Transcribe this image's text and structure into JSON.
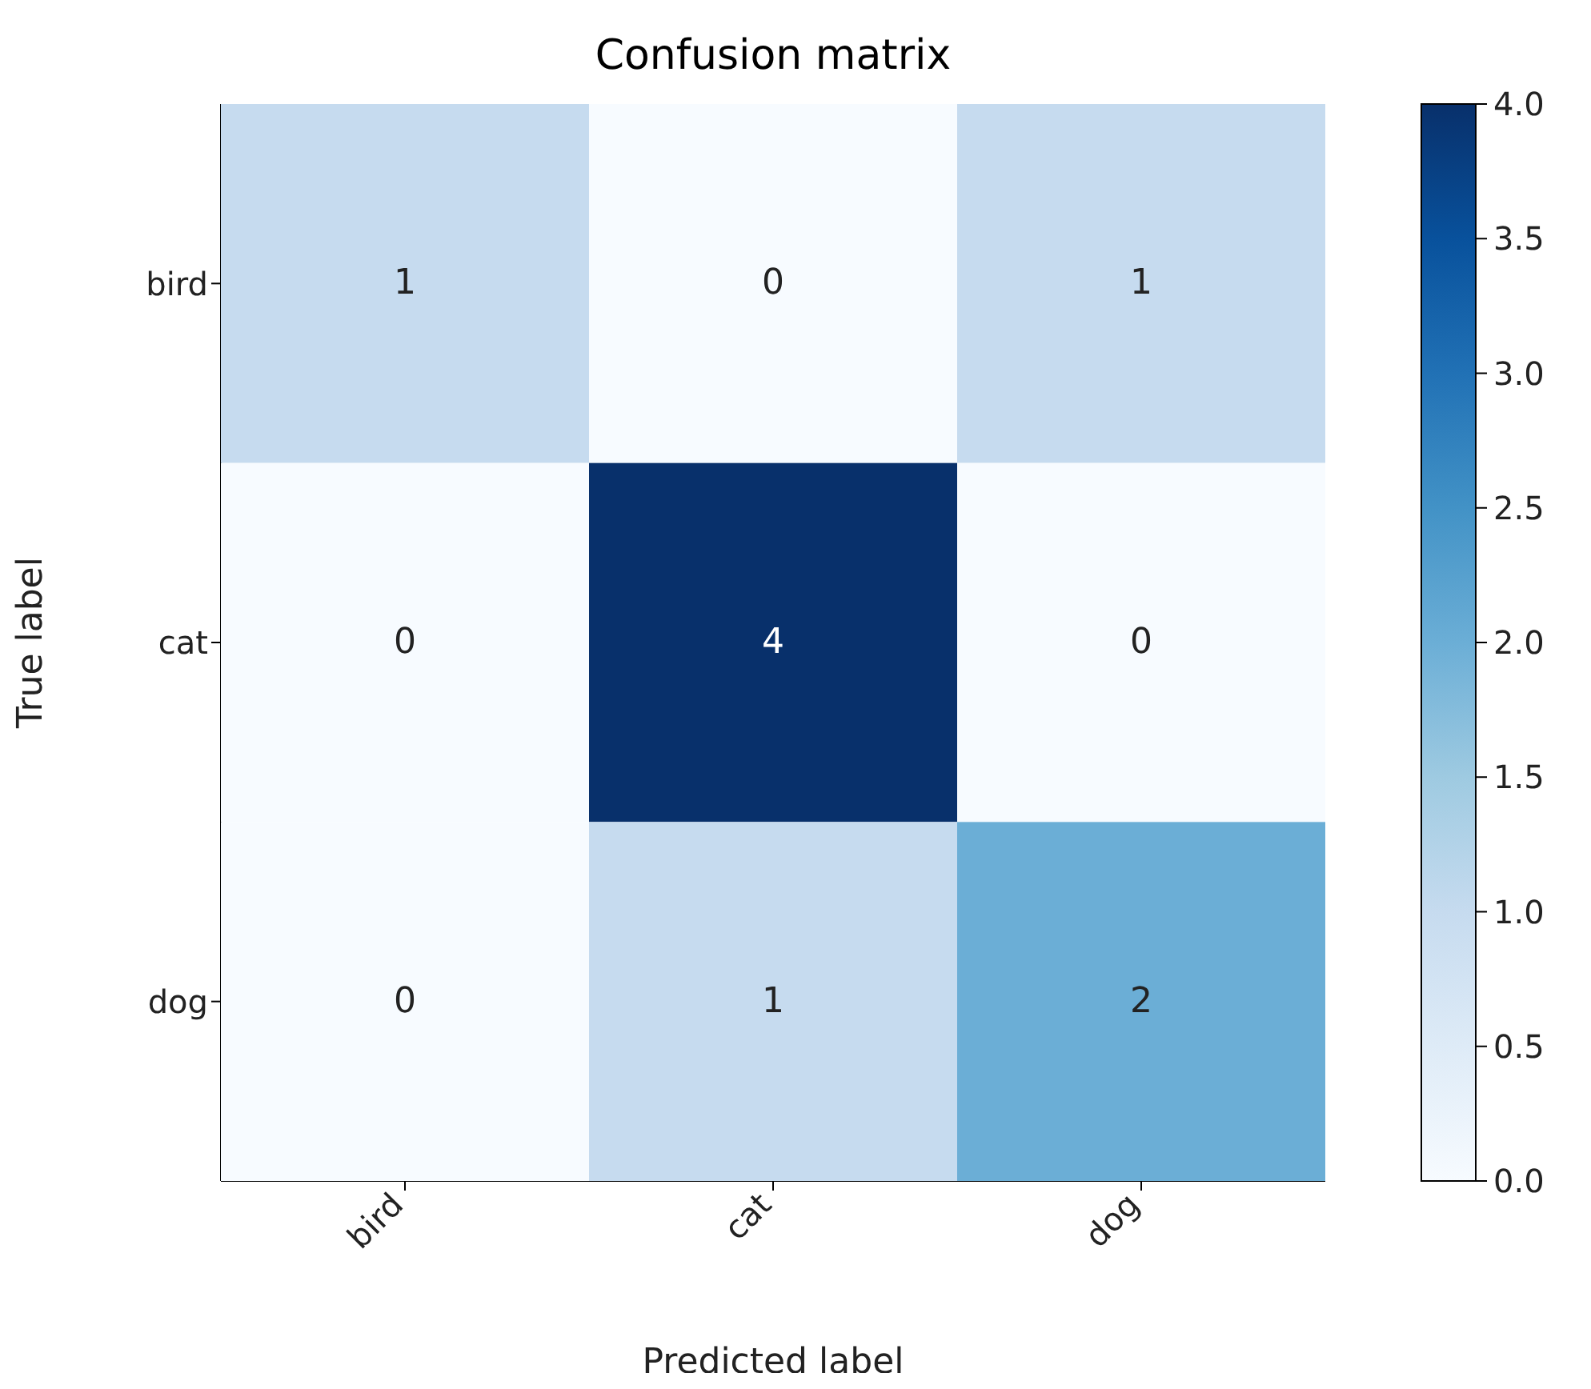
{
  "chart_data": {
    "type": "heatmap",
    "title": "Confusion matrix",
    "xlabel": "Predicted label",
    "ylabel": "True label",
    "categories": [
      "bird",
      "cat",
      "dog"
    ],
    "y_categories": [
      "bird",
      "cat",
      "dog"
    ],
    "cells": [
      [
        1,
        0,
        1
      ],
      [
        0,
        4,
        0
      ],
      [
        0,
        1,
        2
      ]
    ],
    "clim": [
      0,
      4
    ],
    "cticks": [
      {
        "value": 0,
        "label": "0.0"
      },
      {
        "value": 0.5,
        "label": "0.5"
      },
      {
        "value": 1,
        "label": "1.0"
      },
      {
        "value": 1.5,
        "label": "1.5"
      },
      {
        "value": 2,
        "label": "2.0"
      },
      {
        "value": 2.5,
        "label": "2.5"
      },
      {
        "value": 3,
        "label": "3.0"
      },
      {
        "value": 3.5,
        "label": "3.5"
      },
      {
        "value": 4,
        "label": "4.0"
      }
    ],
    "data_labels": true
  }
}
